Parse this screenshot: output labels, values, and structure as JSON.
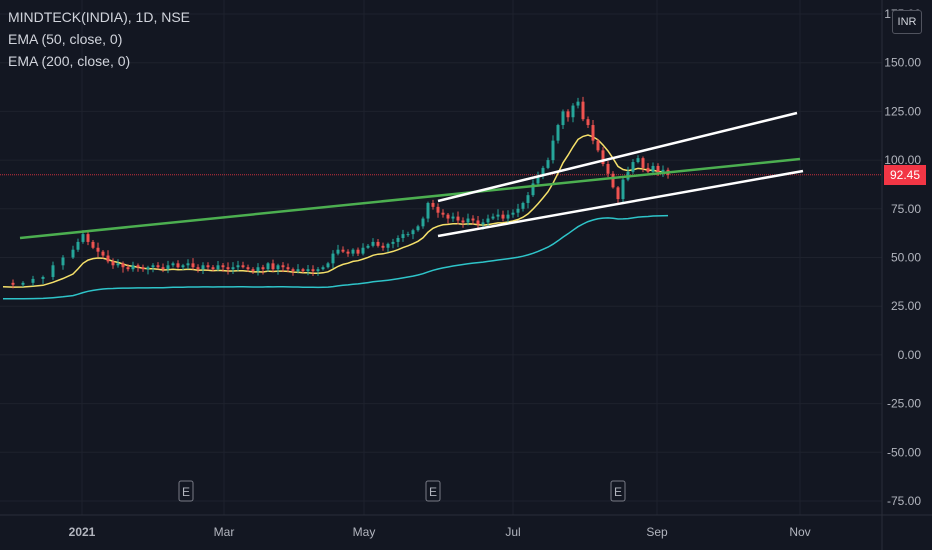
{
  "legend": {
    "symbol": "MINDTECK(INDIA), 1D, NSE",
    "ema50": "EMA (50, close, 0)",
    "ema200": "EMA (200, close, 0)"
  },
  "currency": "INR",
  "last_price": "92.45",
  "colors": {
    "background": "#131722",
    "up": "#26a69a",
    "down": "#ef5350",
    "ema50": "#f5e06a",
    "ema200": "#2ec4c9",
    "trend_green": "#4caf50",
    "channel": "#ffffff",
    "price_line": "#f23645"
  },
  "earnings_marker": "E",
  "chart_data": {
    "type": "candlestick",
    "y_axis": {
      "ticks": [
        "175.00",
        "150.00",
        "125.00",
        "100.00",
        "75.00",
        "50.00",
        "25.00",
        "0.00",
        "-25.00",
        "-50.00",
        "-75.00"
      ],
      "min": -75,
      "max": 175,
      "position": "right"
    },
    "x_axis": {
      "labels": [
        "2021",
        "Mar",
        "May",
        "Jul",
        "Sep",
        "Nov"
      ],
      "label_bold": [
        "2021"
      ]
    },
    "series_close_path": [
      [
        0,
        37
      ],
      [
        2,
        36
      ],
      [
        4,
        37
      ],
      [
        6,
        39
      ],
      [
        8,
        40
      ],
      [
        10,
        46
      ],
      [
        12,
        50
      ],
      [
        14,
        54
      ],
      [
        15,
        58
      ],
      [
        16,
        62
      ],
      [
        17,
        58
      ],
      [
        18,
        55
      ],
      [
        19,
        53
      ],
      [
        20,
        51
      ],
      [
        21,
        48
      ],
      [
        22,
        46
      ],
      [
        23,
        47
      ],
      [
        24,
        45
      ],
      [
        25,
        44
      ],
      [
        26,
        46
      ],
      [
        27,
        45
      ],
      [
        28,
        44
      ],
      [
        29,
        45
      ],
      [
        30,
        46
      ],
      [
        31,
        45
      ],
      [
        32,
        44
      ],
      [
        33,
        46
      ],
      [
        34,
        47
      ],
      [
        35,
        45
      ],
      [
        36,
        46
      ],
      [
        37,
        47
      ],
      [
        38,
        45
      ],
      [
        39,
        44
      ],
      [
        40,
        46
      ],
      [
        41,
        45
      ],
      [
        42,
        44
      ],
      [
        43,
        46
      ],
      [
        44,
        45
      ],
      [
        45,
        44
      ],
      [
        46,
        45
      ],
      [
        47,
        46
      ],
      [
        48,
        45
      ],
      [
        49,
        44
      ],
      [
        50,
        43
      ],
      [
        51,
        45
      ],
      [
        52,
        44
      ],
      [
        53,
        47
      ],
      [
        54,
        44
      ],
      [
        55,
        46
      ],
      [
        56,
        45
      ],
      [
        57,
        44
      ],
      [
        58,
        43
      ],
      [
        59,
        44
      ],
      [
        60,
        43
      ],
      [
        61,
        44
      ],
      [
        62,
        43
      ],
      [
        63,
        44
      ],
      [
        64,
        45
      ],
      [
        65,
        47
      ],
      [
        66,
        52
      ],
      [
        67,
        54
      ],
      [
        68,
        53
      ],
      [
        69,
        52
      ],
      [
        70,
        54
      ],
      [
        71,
        52
      ],
      [
        72,
        55
      ],
      [
        73,
        56
      ],
      [
        74,
        58
      ],
      [
        75,
        56
      ],
      [
        76,
        55
      ],
      [
        77,
        57
      ],
      [
        78,
        58
      ],
      [
        79,
        60
      ],
      [
        80,
        62
      ],
      [
        81,
        62
      ],
      [
        82,
        64
      ],
      [
        83,
        66
      ],
      [
        84,
        70
      ],
      [
        85,
        78
      ],
      [
        86,
        76
      ],
      [
        87,
        73
      ],
      [
        88,
        72
      ],
      [
        89,
        70
      ],
      [
        90,
        71
      ],
      [
        91,
        69
      ],
      [
        92,
        68
      ],
      [
        93,
        70
      ],
      [
        94,
        69
      ],
      [
        95,
        67
      ],
      [
        96,
        68
      ],
      [
        97,
        70
      ],
      [
        98,
        71
      ],
      [
        99,
        72
      ],
      [
        100,
        70
      ],
      [
        101,
        72
      ],
      [
        102,
        73
      ],
      [
        103,
        75
      ],
      [
        104,
        78
      ],
      [
        105,
        82
      ],
      [
        106,
        88
      ],
      [
        107,
        92
      ],
      [
        108,
        96
      ],
      [
        109,
        100
      ],
      [
        110,
        110
      ],
      [
        111,
        118
      ],
      [
        112,
        125
      ],
      [
        113,
        122
      ],
      [
        114,
        128
      ],
      [
        115,
        130
      ],
      [
        116,
        121
      ],
      [
        117,
        118
      ],
      [
        118,
        110
      ],
      [
        119,
        105
      ],
      [
        120,
        98
      ],
      [
        121,
        93
      ],
      [
        122,
        86
      ],
      [
        123,
        80
      ],
      [
        124,
        90
      ],
      [
        125,
        94
      ],
      [
        126,
        99
      ],
      [
        127,
        101
      ],
      [
        128,
        96
      ],
      [
        129,
        94
      ],
      [
        130,
        97
      ],
      [
        131,
        93
      ],
      [
        132,
        95
      ],
      [
        133,
        92.45
      ]
    ],
    "earnings_markers_x": [
      37,
      86,
      123
    ],
    "ema50_start": 31,
    "ema200_start": 28
  }
}
